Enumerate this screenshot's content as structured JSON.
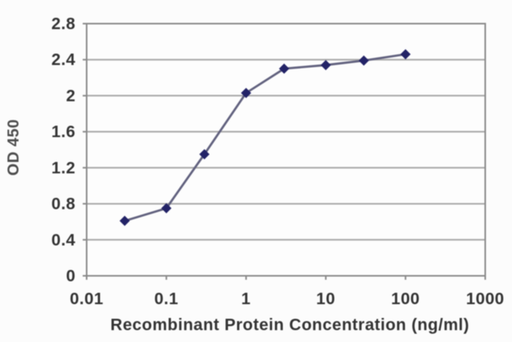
{
  "figure": {
    "background": "#fcfcfc"
  },
  "chart_data": {
    "type": "line",
    "title": "",
    "xlabel": "Recombinant Protein Concentration (ng/ml)",
    "ylabel": "OD 450",
    "x_scale": "log",
    "xlim": [
      0.01,
      1000
    ],
    "ylim": [
      0,
      2.8
    ],
    "x_tick_values": [
      0.01,
      0.1,
      1,
      10,
      100,
      1000
    ],
    "x_tick_labels": [
      "0.01",
      "0.1",
      "1",
      "10",
      "100",
      "1000"
    ],
    "y_tick_values": [
      0,
      0.4,
      0.8,
      1.2,
      1.6,
      2,
      2.4,
      2.8
    ],
    "y_tick_labels": [
      "0",
      "0.4",
      "0.8",
      "1.2",
      "1.6",
      "2",
      "2.4",
      "2.8"
    ],
    "grid": "horizontal",
    "legend": "none",
    "series": [
      {
        "marker": "diamond",
        "x": [
          0.03,
          0.1,
          0.3,
          1,
          3,
          10,
          30,
          100
        ],
        "y": [
          0.61,
          0.75,
          1.35,
          2.03,
          2.3,
          2.34,
          2.39,
          2.46
        ]
      }
    ],
    "colors": {
      "line": "#62627f",
      "marker": "#232367",
      "grid": "#a8a8a8",
      "frame": "#8a8a8a",
      "tick_text": "#333333",
      "axis_title_text": "#333333",
      "plot_background": "#fdfdfd"
    }
  }
}
